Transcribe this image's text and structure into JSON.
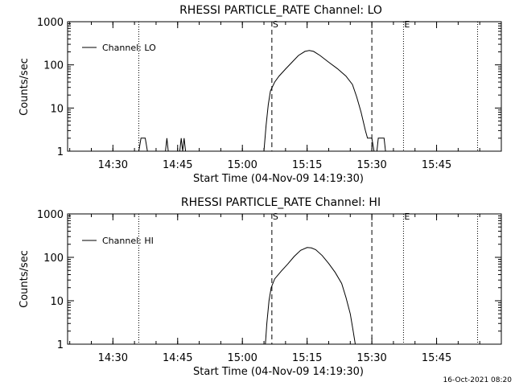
{
  "timestamp": "16-Oct-2021 08:20",
  "chart_data": [
    {
      "type": "line",
      "title": "RHESSI PARTICLE_RATE Channel: LO",
      "xlabel": "Start Time (04-Nov-09 14:19:30)",
      "ylabel": "Counts/sec",
      "y_scale": "log",
      "ylim": [
        1,
        1000
      ],
      "xlim": [
        "14:19:30",
        "16:00:00"
      ],
      "x_ticks": [
        "14:30",
        "14:45",
        "15:00",
        "15:15",
        "15:30",
        "15:45"
      ],
      "y_ticks": [
        "1",
        "10",
        "100",
        "1000"
      ],
      "legend": {
        "label": "Channel: LO",
        "placement": "top-left"
      },
      "markers": [
        {
          "time": "14:36:00",
          "label": "",
          "style": "dotted"
        },
        {
          "time": "15:06:50",
          "label": "S",
          "style": "dashed"
        },
        {
          "time": "15:30:00",
          "label": "",
          "style": "dashed"
        },
        {
          "time": "15:37:20",
          "label": "E",
          "style": "dotted"
        },
        {
          "time": "15:54:30",
          "label": "",
          "style": "dotted"
        }
      ],
      "series": [
        {
          "name": "Channel: LO",
          "points": [
            [
              "14:36:00",
              1
            ],
            [
              "14:36:30",
              2
            ],
            [
              "14:37:30",
              2
            ],
            [
              "14:38:00",
              1
            ],
            [
              "14:42:10",
              1
            ],
            [
              "14:42:30",
              2
            ],
            [
              "14:42:50",
              1
            ],
            [
              "14:45:30",
              1
            ],
            [
              "14:45:50",
              2
            ],
            [
              "14:46:10",
              1
            ],
            [
              "14:46:30",
              2
            ],
            [
              "14:46:50",
              1
            ],
            [
              "15:05:00",
              1
            ],
            [
              "15:05:30",
              4
            ],
            [
              "15:06:00",
              12
            ],
            [
              "15:06:30",
              25
            ],
            [
              "15:07:30",
              40
            ],
            [
              "15:08:30",
              55
            ],
            [
              "15:10:00",
              80
            ],
            [
              "15:11:30",
              115
            ],
            [
              "15:13:00",
              165
            ],
            [
              "15:14:30",
              205
            ],
            [
              "15:15:30",
              215
            ],
            [
              "15:16:30",
              205
            ],
            [
              "15:18:00",
              165
            ],
            [
              "15:20:00",
              115
            ],
            [
              "15:22:00",
              82
            ],
            [
              "15:24:00",
              55
            ],
            [
              "15:25:30",
              35
            ],
            [
              "15:26:30",
              18
            ],
            [
              "15:27:30",
              8
            ],
            [
              "15:28:30",
              3
            ],
            [
              "15:29:00",
              2
            ],
            [
              "15:30:00",
              2
            ],
            [
              "15:30:30",
              1
            ],
            [
              "15:31:10",
              1
            ],
            [
              "15:31:30",
              2
            ],
            [
              "15:32:50",
              2
            ],
            [
              "15:33:10",
              1
            ],
            [
              "15:33:50",
              1
            ]
          ]
        }
      ]
    },
    {
      "type": "line",
      "title": "RHESSI PARTICLE_RATE Channel: HI",
      "xlabel": "Start Time (04-Nov-09 14:19:30)",
      "ylabel": "Counts/sec",
      "y_scale": "log",
      "ylim": [
        1,
        1000
      ],
      "xlim": [
        "14:19:30",
        "16:00:00"
      ],
      "x_ticks": [
        "14:30",
        "14:45",
        "15:00",
        "15:15",
        "15:30",
        "15:45"
      ],
      "y_ticks": [
        "1",
        "10",
        "100",
        "1000"
      ],
      "legend": {
        "label": "Channel: HI",
        "placement": "top-left"
      },
      "markers": [
        {
          "time": "14:36:00",
          "label": "",
          "style": "dotted"
        },
        {
          "time": "15:06:50",
          "label": "S",
          "style": "dashed"
        },
        {
          "time": "15:30:00",
          "label": "",
          "style": "dashed"
        },
        {
          "time": "15:37:20",
          "label": "E",
          "style": "dotted"
        },
        {
          "time": "15:54:30",
          "label": "",
          "style": "dotted"
        }
      ],
      "series": [
        {
          "name": "Channel: HI",
          "points": [
            [
              "15:05:20",
              1
            ],
            [
              "15:05:40",
              3
            ],
            [
              "15:06:10",
              10
            ],
            [
              "15:06:40",
              20
            ],
            [
              "15:07:30",
              32
            ],
            [
              "15:09:00",
              48
            ],
            [
              "15:10:30",
              70
            ],
            [
              "15:12:00",
              105
            ],
            [
              "15:13:30",
              145
            ],
            [
              "15:15:00",
              168
            ],
            [
              "15:16:00",
              165
            ],
            [
              "15:17:00",
              150
            ],
            [
              "15:18:30",
              110
            ],
            [
              "15:20:00",
              72
            ],
            [
              "15:21:30",
              45
            ],
            [
              "15:23:00",
              25
            ],
            [
              "15:24:00",
              12
            ],
            [
              "15:25:00",
              5
            ],
            [
              "15:25:40",
              2
            ],
            [
              "15:26:10",
              1
            ]
          ]
        }
      ]
    }
  ]
}
